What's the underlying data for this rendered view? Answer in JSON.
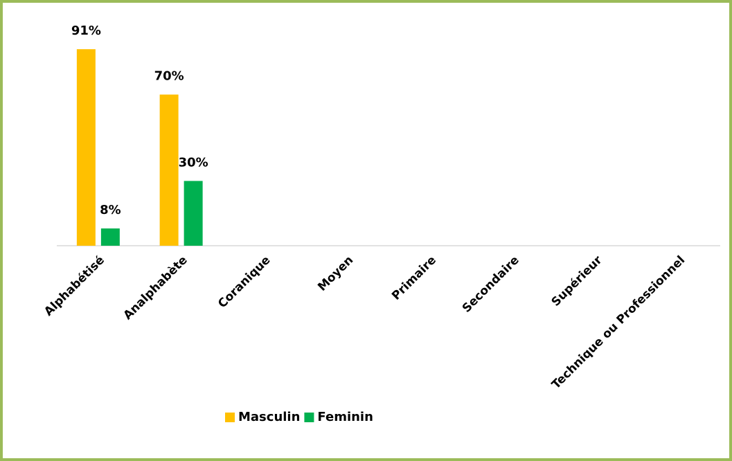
{
  "chart_data": {
    "type": "bar",
    "categories": [
      "Alphabétisé",
      "Analphabète",
      "Coranique",
      "Moyen",
      "Primaire",
      "Secondaire",
      "Supérieur",
      "Technique ou Professionnel"
    ],
    "series": [
      {
        "name": "Masculin",
        "color": "#FFC000",
        "values": [
          91,
          70,
          null,
          null,
          null,
          null,
          null,
          null
        ],
        "value_labels": [
          "91%",
          "70%",
          null,
          null,
          null,
          null,
          null,
          null
        ]
      },
      {
        "name": "Feminin",
        "color": "#00B050",
        "values": [
          8,
          30,
          null,
          null,
          null,
          null,
          null,
          null
        ],
        "value_labels": [
          "8%",
          "30%",
          null,
          null,
          null,
          null,
          null,
          null
        ]
      }
    ],
    "ylim": [
      0,
      100
    ],
    "legend": "bottom"
  }
}
